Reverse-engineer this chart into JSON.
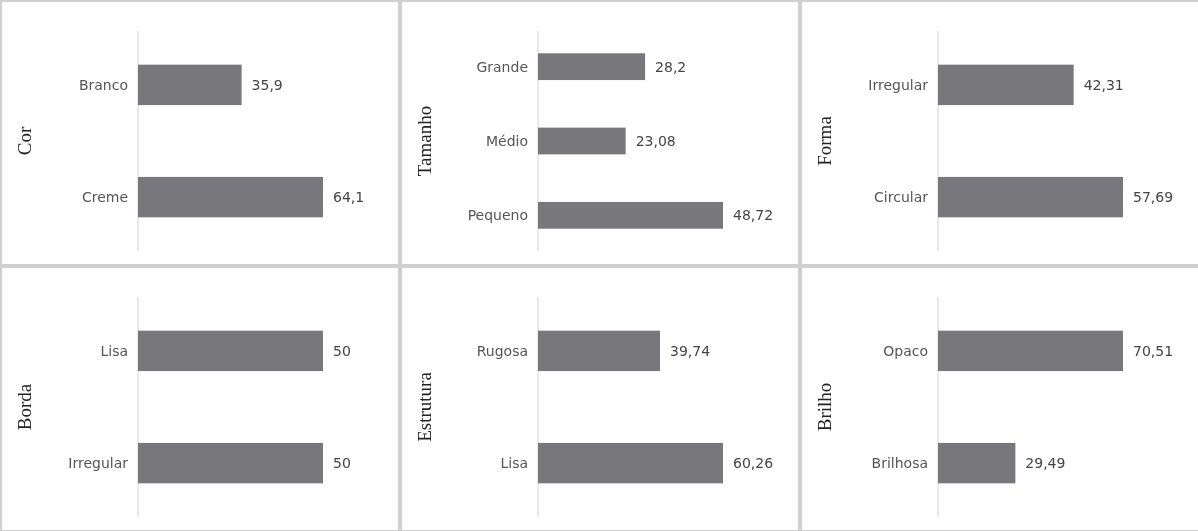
{
  "chart_data": [
    {
      "type": "bar",
      "orientation": "horizontal",
      "ylabel": "Cor",
      "categories": [
        "Branco",
        "Creme"
      ],
      "values": [
        35.9,
        64.1
      ],
      "value_labels": [
        "35,9",
        "64,1"
      ],
      "color": "#78787c",
      "tick_labels": "y"
    },
    {
      "type": "bar",
      "orientation": "horizontal",
      "ylabel": "Tamanho",
      "categories": [
        "Grande",
        "Médio",
        "Pequeno"
      ],
      "values": [
        28.2,
        23.08,
        48.72
      ],
      "value_labels": [
        "28,2",
        "23,08",
        "48,72"
      ],
      "color": "#78787c",
      "tick_labels": "y"
    },
    {
      "type": "bar",
      "orientation": "horizontal",
      "ylabel": "Forma",
      "categories": [
        "Irregular",
        "Circular"
      ],
      "values": [
        42.31,
        57.69
      ],
      "value_labels": [
        "42,31",
        "57,69"
      ],
      "color": "#78787c",
      "tick_labels": "y"
    },
    {
      "type": "bar",
      "orientation": "horizontal",
      "ylabel": "Borda",
      "categories": [
        "Lisa",
        "Irregular"
      ],
      "values": [
        50,
        50
      ],
      "value_labels": [
        "50",
        "50"
      ],
      "color": "#78787c",
      "tick_labels": "y"
    },
    {
      "type": "bar",
      "orientation": "horizontal",
      "ylabel": "Estrutura",
      "categories": [
        "Rugosa",
        "Lisa"
      ],
      "values": [
        39.74,
        60.26
      ],
      "value_labels": [
        "39,74",
        "60,26"
      ],
      "color": "#78787c",
      "tick_labels": "y"
    },
    {
      "type": "bar",
      "orientation": "horizontal",
      "ylabel": "Brilho",
      "categories": [
        "Opaco",
        "Brilhosa"
      ],
      "values": [
        70.51,
        29.49
      ],
      "value_labels": [
        "70,51",
        "29,49"
      ],
      "color": "#78787c",
      "tick_labels": "y"
    }
  ]
}
